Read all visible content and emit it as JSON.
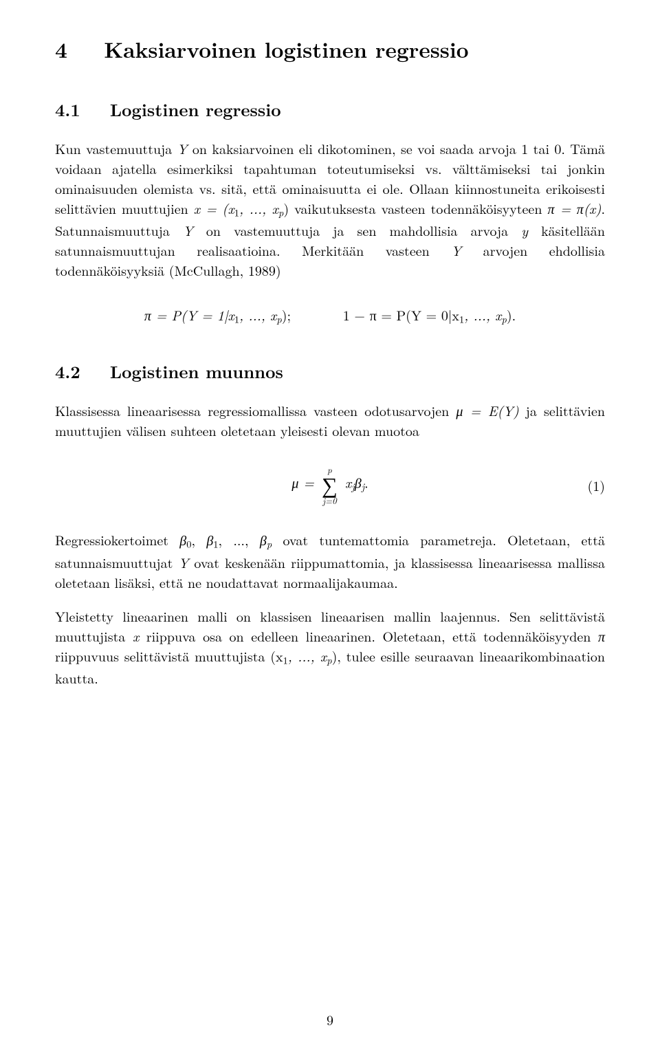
{
  "section": {
    "number": "4",
    "title": "Kaksiarvoinen logistinen regressio"
  },
  "sub41": {
    "number": "4.1",
    "title": "Logistinen regressio",
    "p1a": "Kun vastemuuttuja ",
    "p1b": " on kaksiarvoinen eli dikotominen, se voi saada arvoja 1 tai 0. Tämä voidaan ajatella esimerkiksi tapahtuman toteutumiseksi vs. välttämiseksi tai jonkin ominaisuuden olemista vs. sitä, että ominaisuutta ei ole. Ollaan kiinnostuneita erikoisesti selittävien muuttujien ",
    "p1c": " vaikutuksesta vasteen todennäköisyyteen ",
    "p1d": ". Satunnaismuuttuja ",
    "p1e": " on vastemuuttuja ja sen mahdollisia arvoja ",
    "p1f": " käsitellään satunnaismuuttujan realisaatioina. Merkitään vasteen ",
    "p1g": " arvojen ehdollisia todennäköisyyksiä (McCullagh, 1989)",
    "Y": "Y",
    "y": "y",
    "xvec": "x = (x",
    "xvec2": ", ..., x",
    "pieq": "π = π(x)",
    "eq1a": "π = P(Y = 1|x",
    "eq1b": ", ..., x",
    "eq1c": ");",
    "eq1d": "1 − π = P(Y = 0|x",
    "eq1e": ", ..., x",
    "eq1f": ")."
  },
  "sub42": {
    "number": "4.2",
    "title": "Logistinen muunnos",
    "p1a": "Klassisessa lineaarisessa regressiomallissa vasteen odotusarvojen ",
    "p1b": " ja selittävien muuttujien välisen suhteen oletetaan yleisesti olevan muotoa",
    "muEY": "μ = E(Y)",
    "eq_mu": "μ = ",
    "eq_sum_top": "p",
    "eq_sum_bot": "j=0",
    "eq_term": " x",
    "eq_beta": "β",
    "eq_period": ".",
    "eq_num": "(1)",
    "p2a": "Regressiokertoimet ",
    "p2_betas": "β",
    "p2b": " ovat tuntemattomia parametreja. Oletetaan, että satunnaismuuttujat ",
    "p2c": " ovat keskenään riippumattomia, ja klassisessa lineaarisessa mallissa oletetaan lisäksi, että ne noudattavat normaalijakaumaa.",
    "p3a": "Yleistetty lineaarinen malli on klassisen lineaarisen mallin laajennus. Sen selittävistä muuttujista ",
    "p3b": " riippuva osa on edelleen lineaarinen. Oletetaan, että todennäköisyyden ",
    "p3c": " riippuvuus selittävistä muuttujista ",
    "p3d": ", tulee esille seuraavan lineaarikombinaation kautta.",
    "x": "x",
    "pi": "π",
    "xtuple_a": "(x",
    "xtuple_b": ", ..., x",
    "xtuple_c": ")",
    "Y": "Y"
  },
  "page_number": "9"
}
